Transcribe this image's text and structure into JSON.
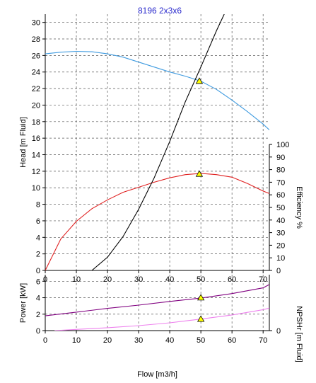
{
  "chart_data": [
    {
      "type": "line",
      "title": "8196 2x3x6",
      "xlabel": "",
      "ylabel": "Head [m Fluid]",
      "y2label": "Efficiency %",
      "xlim": [
        0,
        72
      ],
      "ylim": [
        0,
        31
      ],
      "y2lim": [
        0,
        100
      ],
      "xticks": [
        0,
        10,
        20,
        30,
        40,
        50,
        60,
        70
      ],
      "yticks": [
        0,
        2,
        4,
        6,
        8,
        10,
        12,
        14,
        16,
        18,
        20,
        22,
        24,
        26,
        28,
        30
      ],
      "y2ticks": [
        0,
        10,
        20,
        30,
        40,
        50,
        60,
        70,
        80,
        90,
        100
      ],
      "grid": true,
      "colors": {
        "title": "#2a2acc",
        "head": "#3f9be0",
        "efficiency": "#e02020",
        "system": "#000000",
        "marker": "#ffff00"
      },
      "series": [
        {
          "key": "head",
          "axis": "left",
          "x": [
            0,
            5,
            10,
            15,
            20,
            25,
            30,
            35,
            40,
            45,
            50,
            55,
            60,
            65,
            70,
            72
          ],
          "y": [
            26.2,
            26.4,
            26.5,
            26.45,
            26.2,
            25.8,
            25.2,
            24.6,
            24.0,
            23.5,
            22.9,
            21.9,
            20.6,
            19.2,
            17.7,
            17.0
          ]
        },
        {
          "key": "efficiency",
          "axis": "right",
          "x": [
            0,
            5,
            10,
            15,
            20,
            25,
            30,
            35,
            40,
            45,
            50,
            55,
            60,
            65,
            70,
            72
          ],
          "y": [
            0,
            25,
            39,
            49,
            56,
            62,
            66,
            70,
            73.5,
            76,
            77,
            76,
            74,
            69,
            63,
            61
          ]
        },
        {
          "key": "system",
          "axis": "left",
          "x": [
            15,
            20,
            25,
            30,
            35,
            40,
            45,
            50,
            55,
            57.5
          ],
          "y": [
            0,
            1.6,
            4.1,
            7.4,
            11.2,
            15.6,
            20.4,
            24.6,
            29.0,
            31.0
          ]
        }
      ],
      "markers": [
        {
          "x": 49.5,
          "y": 22.9,
          "axis": "left"
        },
        {
          "x": 49.5,
          "y": 76.5,
          "axis": "right"
        }
      ]
    },
    {
      "type": "line",
      "title": "",
      "xlabel": "Flow [m3/h]",
      "ylabel": "Power [kW]",
      "y2label": "NPSHr [m Fluid]",
      "xlim": [
        0,
        72
      ],
      "ylim": [
        0,
        6.8
      ],
      "xticks": [
        0,
        10,
        20,
        30,
        40,
        50,
        60,
        70
      ],
      "yticks": [
        0,
        2,
        4,
        6
      ],
      "y2ticks": [
        0
      ],
      "grid": true,
      "colors": {
        "power": "#800080",
        "npshr": "#ee82ee",
        "marker": "#ffff00"
      },
      "series": [
        {
          "key": "power",
          "x": [
            0,
            10,
            20,
            30,
            40,
            50,
            60,
            70,
            72
          ],
          "y": [
            1.8,
            2.25,
            2.7,
            3.1,
            3.55,
            3.95,
            4.5,
            5.2,
            5.6
          ]
        },
        {
          "key": "npshr",
          "x": [
            3,
            10,
            20,
            30,
            40,
            50,
            60,
            70,
            72
          ],
          "y": [
            0,
            0.15,
            0.35,
            0.6,
            0.95,
            1.4,
            1.9,
            2.55,
            2.75
          ]
        }
      ],
      "markers": [
        {
          "x": 50,
          "y": 4.0
        },
        {
          "x": 50,
          "y": 1.4
        }
      ]
    }
  ]
}
